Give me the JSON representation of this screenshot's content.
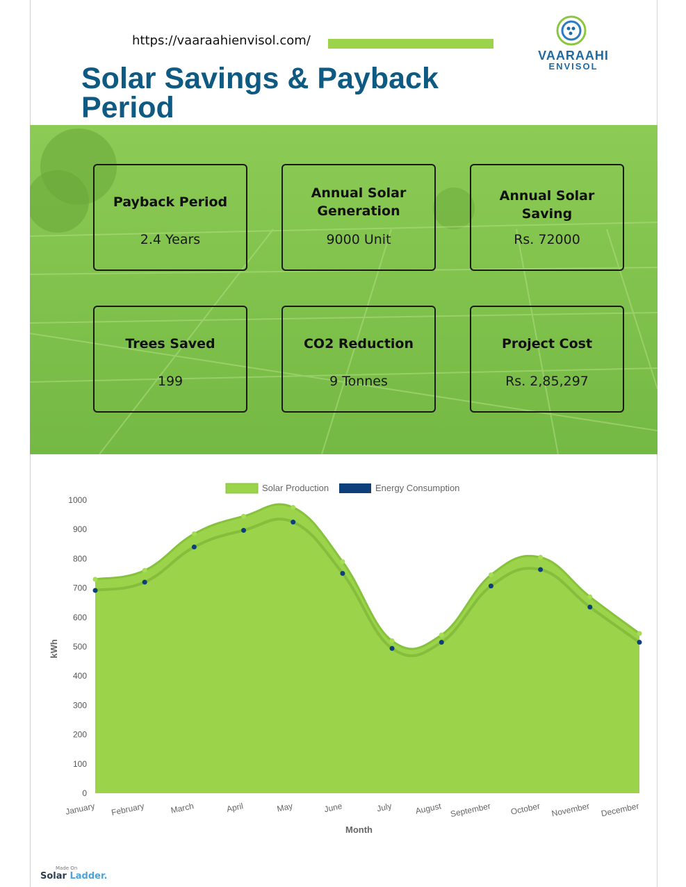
{
  "header": {
    "url": "https://vaaraahienvisol.com/",
    "title": "Solar Savings & Payback Period",
    "logo_line1": "VAARAAHI",
    "logo_line2": "ENVISOL"
  },
  "colors": {
    "accent_green": "#9bd34a",
    "title_blue": "#0f5a82",
    "consumption_blue": "#0d3f7a"
  },
  "cards": [
    {
      "title": "Payback Period",
      "value": "2.4 Years"
    },
    {
      "title": "Annual Solar Generation",
      "value": "9000 Unit"
    },
    {
      "title": "Annual Solar Saving",
      "value": "Rs. 72000"
    },
    {
      "title": "Trees Saved",
      "value": "199"
    },
    {
      "title": "CO2 Reduction",
      "value": "9 Tonnes"
    },
    {
      "title": "Project Cost",
      "value": "Rs. 2,85,297"
    }
  ],
  "chart_data": {
    "type": "area",
    "categories": [
      "January",
      "February",
      "March",
      "April",
      "May",
      "June",
      "July",
      "August",
      "September",
      "October",
      "November",
      "December"
    ],
    "series": [
      {
        "name": "Solar Production",
        "color": "#9bd34a",
        "values": [
          730,
          760,
          885,
          945,
          975,
          790,
          520,
          540,
          745,
          805,
          670,
          545
        ]
      },
      {
        "name": "Energy Consumption",
        "color": "#0d3f7a",
        "values": [
          692,
          720,
          840,
          897,
          925,
          750,
          494,
          515,
          707,
          763,
          635,
          515
        ]
      }
    ],
    "xlabel": "Month",
    "ylabel": "kWh",
    "ylim": [
      0,
      1000
    ],
    "yticks": [
      0,
      100,
      200,
      300,
      400,
      500,
      600,
      700,
      800,
      900,
      1000
    ],
    "legend": "top-center",
    "grid": false
  },
  "footer": {
    "made_on": "Made On",
    "brand_a": "Solar",
    "brand_b": "Ladder."
  }
}
